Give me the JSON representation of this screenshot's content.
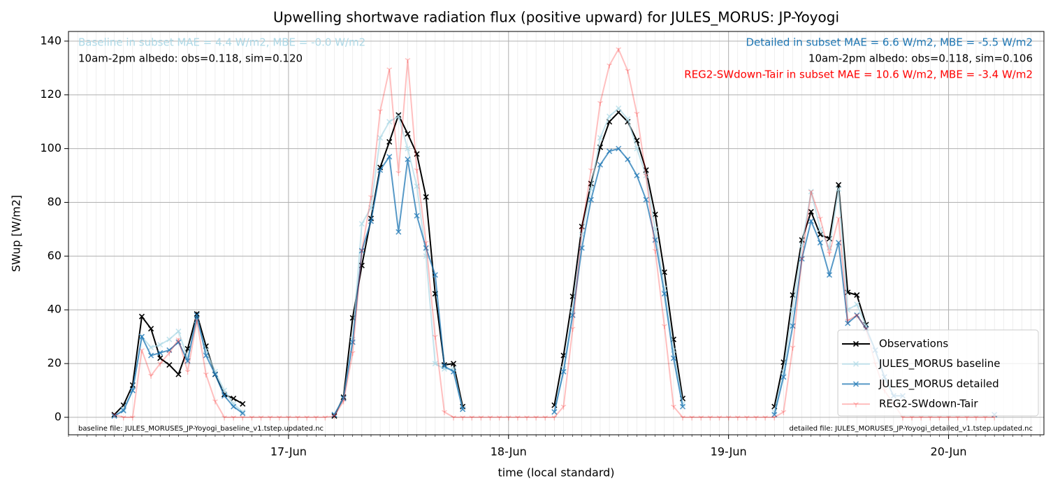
{
  "chart_data": {
    "type": "line",
    "title": "Upwelling shortwave radiation flux (positive upward) for JULES_MORUS: JP-Yoyogi",
    "xlabel": "time (local standard)",
    "ylabel": "SWup [W/m2]",
    "x": [
      5,
      6,
      7,
      8,
      9,
      10,
      11,
      12,
      13,
      14,
      15,
      16,
      17,
      18,
      19,
      20,
      21,
      22,
      23,
      24,
      25,
      26,
      27,
      28,
      29,
      30,
      31,
      32,
      33,
      34,
      35,
      36,
      37,
      38,
      39,
      40,
      41,
      42,
      43,
      44,
      45,
      46,
      47,
      48,
      49,
      50,
      51,
      52,
      53,
      54,
      55,
      56,
      57,
      58,
      59,
      60,
      61,
      62,
      63,
      64,
      65,
      66,
      67,
      68,
      69,
      70,
      71,
      72,
      73,
      74,
      75,
      76,
      77,
      78,
      79,
      80,
      81,
      82,
      83,
      84,
      85,
      86,
      87,
      88,
      89,
      90,
      91,
      92,
      93,
      94,
      95,
      96,
      97,
      98,
      99,
      100,
      101
    ],
    "xlim": [
      0,
      106.4
    ],
    "xticks": [
      {
        "value": 24,
        "label": "17-Jun"
      },
      {
        "value": 48,
        "label": "18-Jun"
      },
      {
        "value": 72,
        "label": "19-Jun"
      },
      {
        "value": 96,
        "label": "20-Jun"
      }
    ],
    "ylim": [
      -6.5,
      143.6
    ],
    "yticks": [
      0,
      20,
      40,
      60,
      80,
      100,
      120,
      140
    ],
    "grid": true,
    "minor_grid": true,
    "legend": "lower right",
    "series": [
      {
        "name": "Observations",
        "color": "#000000",
        "opacity": 1,
        "marker": "x",
        "values": [
          1,
          4.5,
          12,
          37.5,
          33,
          22,
          19.5,
          16,
          25.5,
          38.5,
          26.5,
          16,
          8.5,
          7,
          5,
          null,
          null,
          null,
          null,
          null,
          null,
          null,
          null,
          null,
          0.5,
          7.5,
          37,
          56.5,
          74,
          93,
          102.5,
          112.5,
          105.5,
          98,
          82,
          46,
          19.5,
          20,
          4,
          null,
          null,
          null,
          null,
          null,
          null,
          null,
          null,
          null,
          4.5,
          23,
          45,
          71,
          87,
          100.5,
          110,
          113.5,
          110,
          103,
          92,
          75.5,
          54,
          29,
          7,
          null,
          null,
          null,
          null,
          null,
          null,
          null,
          null,
          null,
          4,
          20.5,
          45.5,
          66,
          76.5,
          68,
          66.5,
          86.5,
          46.5,
          45.5,
          34.5,
          null,
          null,
          null,
          null,
          null,
          null,
          null,
          null,
          null,
          null,
          null,
          null,
          null,
          null
        ]
      },
      {
        "name": "JULES_MORUS baseline",
        "color": "#add8e6",
        "opacity": 0.7,
        "marker": "x",
        "values": [
          0.5,
          3,
          10,
          30,
          26,
          27,
          29,
          32,
          22,
          36,
          25,
          17,
          10,
          5,
          2,
          null,
          null,
          null,
          null,
          null,
          null,
          null,
          null,
          null,
          1,
          7,
          29,
          72,
          78,
          104,
          110,
          112,
          100,
          86,
          60,
          20,
          18,
          18,
          3,
          null,
          null,
          null,
          null,
          null,
          null,
          null,
          null,
          null,
          2,
          18,
          40,
          68,
          85,
          104,
          112,
          115,
          111,
          100,
          90,
          70,
          48,
          25,
          5,
          null,
          null,
          null,
          null,
          null,
          null,
          null,
          null,
          null,
          2,
          17,
          40,
          64,
          84,
          70,
          63,
          85,
          40,
          42,
          34,
          25,
          15,
          8,
          8,
          null,
          null,
          null,
          null,
          null,
          null,
          null,
          null,
          null,
          1
        ]
      },
      {
        "name": "JULES_MORUS detailed",
        "color": "#1f77b4",
        "opacity": 0.75,
        "marker": "x",
        "values": [
          0.5,
          2.5,
          10,
          30,
          23,
          24,
          25,
          28,
          21,
          38,
          23,
          16,
          8,
          4,
          1.5,
          null,
          null,
          null,
          null,
          null,
          null,
          null,
          null,
          null,
          1,
          7,
          28,
          62,
          73,
          92,
          97,
          69,
          96,
          75,
          63,
          53,
          19,
          17,
          3,
          null,
          null,
          null,
          null,
          null,
          null,
          null,
          null,
          null,
          2,
          17,
          38,
          63,
          81,
          94,
          99,
          100,
          96,
          90,
          81,
          66,
          46,
          22,
          4,
          null,
          null,
          null,
          null,
          null,
          null,
          null,
          null,
          null,
          1,
          15,
          34,
          59,
          73,
          65,
          53,
          65,
          35,
          38,
          33,
          25,
          15,
          8,
          8,
          null,
          null,
          null,
          null,
          null,
          null,
          null,
          null,
          null,
          1
        ]
      },
      {
        "name": "REG2-SWdown-Tair",
        "color": "#ff0000",
        "opacity": 0.25,
        "marker": "tri",
        "values": [
          1,
          0,
          0,
          25,
          15.5,
          20,
          24,
          29,
          17,
          36,
          16,
          6,
          0,
          0,
          0,
          0,
          0,
          0,
          0,
          0,
          0,
          0,
          0,
          0,
          0.5,
          6,
          24,
          62,
          82,
          114,
          129.5,
          91,
          133,
          92,
          65,
          30,
          2,
          0,
          0,
          0,
          0,
          0,
          0,
          0,
          0,
          0,
          0,
          0,
          0,
          4,
          33,
          70,
          92,
          117,
          131,
          137,
          129,
          113,
          90,
          62,
          34,
          4,
          0,
          0,
          0,
          0,
          0,
          0,
          0,
          0,
          0,
          0,
          0,
          2,
          26,
          59,
          84,
          74,
          61,
          74,
          36,
          38,
          33,
          20,
          10,
          5,
          0,
          0,
          0,
          0,
          0,
          0,
          0,
          0,
          0,
          0,
          0
        ]
      }
    ],
    "annotations": {
      "baseline_stats": "Baseline in subset MAE = 4.4 W/m2, MBE = -0.0 W/m2",
      "baseline_albedo": "10am-2pm albedo: obs=0.118, sim=0.120",
      "detailed_stats": "Detailed in subset MAE = 6.6 W/m2, MBE = -5.5 W/m2",
      "detailed_albedo": "10am-2pm albedo: obs=0.118, sim=0.106",
      "reg2_stats": "REG2-SWdown-Tair in subset MAE = 10.6 W/m2, MBE = -3.4 W/m2",
      "baseline_file": "baseline file: JULES_MORUSES_JP-Yoyogi_baseline_v1.tstep.updated.nc",
      "detailed_file": "detailed file: JULES_MORUSES_JP-Yoyogi_detailed_v1.tstep.updated.nc"
    }
  }
}
